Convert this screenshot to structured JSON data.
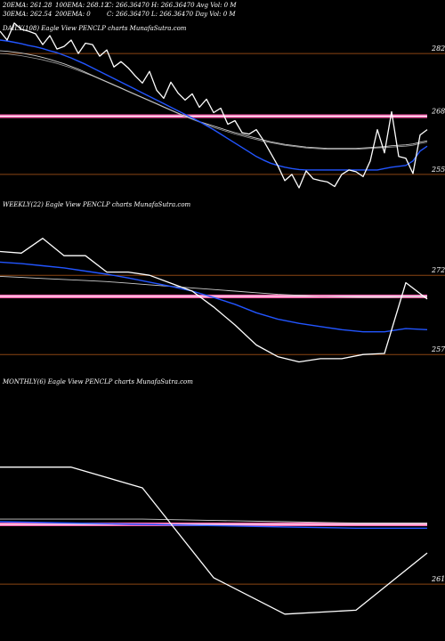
{
  "header": {
    "line1": [
      "20EMA: 261.28",
      "100EMA: 268.12",
      "C: 266.36470  H: 266.36470  Avg Vol: 0  M"
    ],
    "line2": [
      "30EMA: 262.54",
      "200EMA: 0",
      "C: 266.36470  L: 266.36470  Day Vol: 0  M"
    ]
  },
  "colors": {
    "price": "#ffffff",
    "ema_fast": "#2255ff",
    "ema_slow": "#cccccc",
    "support_line": "#8b4513",
    "resistance_band": "#ff69b4"
  },
  "chart_data": [
    {
      "type": "line",
      "title": "DAILY(108) Eagle  View  PENCLP charts MunafaSutra.com",
      "yticks": [
        "282",
        "268",
        "255"
      ],
      "tick_values": [
        282,
        268,
        255
      ],
      "ylim": [
        251,
        286
      ],
      "price": [
        287.0,
        285.0,
        288.8,
        287.4,
        287.0,
        286.4,
        284.0,
        286.0,
        283.0,
        283.6,
        285.0,
        282.0,
        284.3,
        284.0,
        281.4,
        282.8,
        279.0,
        280.2,
        278.8,
        277.0,
        275.4,
        278.0,
        273.8,
        272.0,
        275.6,
        273.2,
        271.6,
        273.0,
        270.0,
        271.8,
        268.8,
        269.8,
        266.2,
        267.0,
        264.3,
        264.0,
        265.0,
        262.6,
        259.8,
        257.0,
        253.6,
        255.0,
        252.0,
        255.8,
        254.0,
        253.6,
        253.3,
        252.3,
        255.0,
        256.0,
        255.6,
        254.5,
        258.0,
        265.0,
        259.8,
        269.0,
        259.0,
        258.6,
        255.2,
        263.8,
        265.0
      ],
      "ema_fast": [
        285.0,
        284.8,
        284.5,
        284.2,
        283.8,
        283.5,
        283.1,
        282.6,
        282.2,
        281.6,
        281.0,
        280.3,
        279.6,
        278.8,
        278.0,
        277.2,
        276.4,
        275.6,
        274.8,
        274.0,
        273.2,
        272.4,
        271.6,
        270.8,
        270.0,
        269.2,
        268.4,
        267.6,
        266.8,
        265.9,
        265.0,
        264.0,
        263.0,
        262.0,
        261.0,
        260.0,
        259.0,
        258.2,
        257.5,
        257.0,
        256.6,
        256.3,
        256.1,
        256.0,
        256.0,
        256.0,
        256.0,
        256.0,
        256.0,
        256.0,
        256.0,
        256.0,
        256.0,
        256.0,
        256.3,
        256.6,
        256.8,
        257.0,
        258.0,
        260.2,
        261.3
      ],
      "ema_slow": [
        282.6,
        282.5,
        282.3,
        282.1,
        281.8,
        281.5,
        281.1,
        280.7,
        280.2,
        279.7,
        279.1,
        278.5,
        277.8,
        277.1,
        276.4,
        275.7,
        275.0,
        274.3,
        273.6,
        272.9,
        272.2,
        271.5,
        270.8,
        270.1,
        269.4,
        268.7,
        268.0,
        267.4,
        266.8,
        266.3,
        265.8,
        265.3,
        264.8,
        264.3,
        263.9,
        263.5,
        263.1,
        262.7,
        262.3,
        262.0,
        261.7,
        261.5,
        261.3,
        261.1,
        261.0,
        260.9,
        260.8,
        260.8,
        260.8,
        260.8,
        260.8,
        260.9,
        261.0,
        261.1,
        261.2,
        261.4,
        261.5,
        261.6,
        261.8,
        262.2,
        262.5
      ],
      "ema_slow2": [
        282.0,
        281.9,
        281.7,
        281.5,
        281.2,
        280.9,
        280.6,
        280.2,
        279.8,
        279.3,
        278.8,
        278.2,
        277.6,
        277.0,
        276.3,
        275.6,
        274.9,
        274.2,
        273.5,
        272.8,
        272.1,
        271.4,
        270.7,
        270.0,
        269.3,
        268.6,
        267.9,
        267.3,
        266.7,
        266.1,
        265.5,
        265.0,
        264.5,
        264.0,
        263.6,
        263.2,
        262.8,
        262.4,
        262.1,
        261.8,
        261.5,
        261.3,
        261.1,
        260.9,
        260.8,
        260.7,
        260.6,
        260.6,
        260.6,
        260.6,
        260.6,
        260.7,
        260.8,
        260.9,
        261.0,
        261.1,
        261.2,
        261.3,
        261.5,
        261.9,
        262.2
      ],
      "levels": {
        "support": [
          282,
          255
        ],
        "resistance": 268
      }
    },
    {
      "type": "line",
      "title": "WEEKLY(22) Eagle  View  PENCLP charts MunafaSutra.com",
      "yticks": [
        "272",
        "257"
      ],
      "tick_values": [
        272,
        257
      ],
      "ylim": [
        254,
        284
      ],
      "price": [
        276.5,
        276.2,
        279.0,
        275.7,
        275.7,
        272.6,
        272.6,
        272.0,
        270.5,
        269.0,
        266.0,
        262.6,
        258.8,
        256.6,
        255.6,
        256.2,
        256.2,
        257.0,
        257.2,
        270.6,
        267.5
      ],
      "ema_fast": [
        274.5,
        274.2,
        273.8,
        273.4,
        272.8,
        272.2,
        271.5,
        270.7,
        269.9,
        269.0,
        267.8,
        266.5,
        264.9,
        263.7,
        262.9,
        262.3,
        261.7,
        261.3,
        261.3,
        261.9,
        261.7
      ],
      "ema_slow": [
        271.8,
        271.6,
        271.4,
        271.2,
        271.0,
        270.8,
        270.5,
        270.2,
        269.9,
        269.6,
        269.3,
        269.0,
        268.7,
        268.4,
        268.2,
        268.0,
        267.9,
        267.8,
        267.8,
        267.9,
        267.9
      ],
      "levels": {
        "support": [
          272,
          257
        ],
        "resistance": 268
      }
    },
    {
      "type": "line",
      "title": "MONTHLY(6) Eagle  View  PENCLP charts MunafaSutra.com",
      "yticks": [
        "261"
      ],
      "tick_values": [
        261
      ],
      "ylim": [
        258,
        276
      ],
      "price": [
        270.0,
        270.0,
        268.4,
        261.5,
        258.7,
        259.0,
        263.4
      ],
      "ema_fast": [
        265.8,
        265.7,
        265.6,
        265.5,
        265.4,
        265.3,
        265.3
      ],
      "ema_slow": [
        266.0,
        266.0,
        266.0,
        265.9,
        265.8,
        265.7,
        265.7
      ],
      "levels": {
        "support": [
          261
        ],
        "resistance": 265.6
      }
    }
  ]
}
